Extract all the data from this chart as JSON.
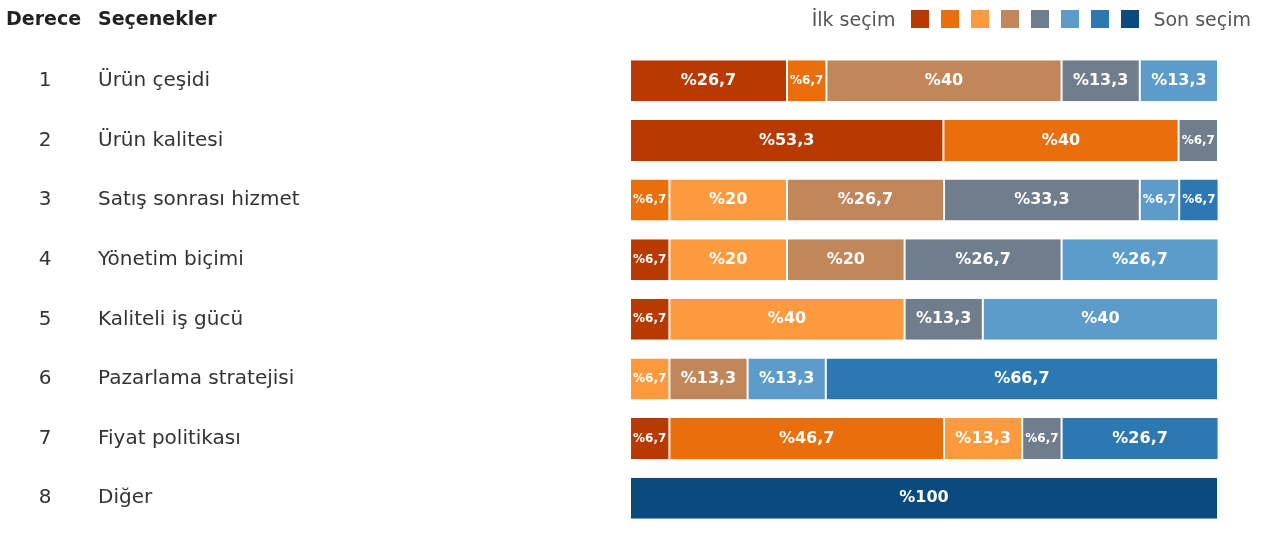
{
  "chart_data": {
    "type": "bar",
    "orientation": "horizontal",
    "stacked": true,
    "ylabel": "Seçenekler",
    "categories": [
      "Ürün çeşidi",
      "Ürün kalitesi",
      "Satış sonrası hizmet",
      "Yönetim biçimi",
      "Kaliteli iş gücü",
      "Pazarlama stratejisi",
      "Fiyat politikası",
      "Diğer"
    ],
    "xlim": [
      0,
      100
    ],
    "tick_labels": "y",
    "series": [
      {
        "color": "#b83a00",
        "values": [
          26.7,
          53.3,
          null,
          6.7,
          6.7,
          null,
          6.7,
          null
        ],
        "value_labels": [
          "%26,7",
          "%53,3",
          null,
          "%6,7",
          "%6,7",
          null,
          "%6,7",
          null
        ]
      },
      {
        "color": "#ea6e0c",
        "values": [
          6.7,
          40,
          6.7,
          null,
          null,
          null,
          46.7,
          null
        ],
        "value_labels": [
          "%6,7",
          "%40",
          "%6,7",
          null,
          null,
          null,
          "%46,7",
          null
        ]
      },
      {
        "color": "#fd9a3e",
        "values": [
          null,
          null,
          20,
          20,
          40,
          6.7,
          13.3,
          null
        ],
        "value_labels": [
          null,
          null,
          "%20",
          "%20",
          "%40",
          "%6,7",
          "%13,3",
          null
        ]
      },
      {
        "color": "#c2865b",
        "values": [
          40,
          null,
          26.7,
          20,
          null,
          13.3,
          null,
          null
        ],
        "value_labels": [
          "%40",
          null,
          "%26,7",
          "%20",
          null,
          "%13,3",
          null,
          null
        ]
      },
      {
        "color": "#6f7d8c",
        "values": [
          13.3,
          6.7,
          33.3,
          26.7,
          13.3,
          null,
          6.7,
          null
        ],
        "value_labels": [
          "%13,3",
          "%6,7",
          "%33,3",
          "%26,7",
          "%13,3",
          null,
          "%6,7",
          null
        ]
      },
      {
        "color": "#5d9cca",
        "values": [
          13.3,
          null,
          6.7,
          26.7,
          40,
          13.3,
          null,
          null
        ],
        "value_labels": [
          "%13,3",
          null,
          "%6,7",
          "%26,7",
          "%40",
          "%13,3",
          null,
          null
        ]
      },
      {
        "color": "#2c78b3",
        "values": [
          null,
          null,
          6.7,
          null,
          null,
          66.7,
          26.7,
          null
        ],
        "value_labels": [
          null,
          null,
          "%6,7",
          null,
          null,
          "%66,7",
          "%26,7",
          null
        ]
      },
      {
        "color": "#0b4a7e",
        "values": [
          null,
          null,
          null,
          null,
          null,
          null,
          null,
          100
        ],
        "value_labels": [
          null,
          null,
          null,
          null,
          null,
          null,
          null,
          "%100"
        ]
      }
    ],
    "annotations": [
      "Derece",
      "İlk seçim",
      "Son seçim",
      "1",
      "2",
      "3",
      "4",
      "5",
      "6",
      "7",
      "8"
    ]
  }
}
